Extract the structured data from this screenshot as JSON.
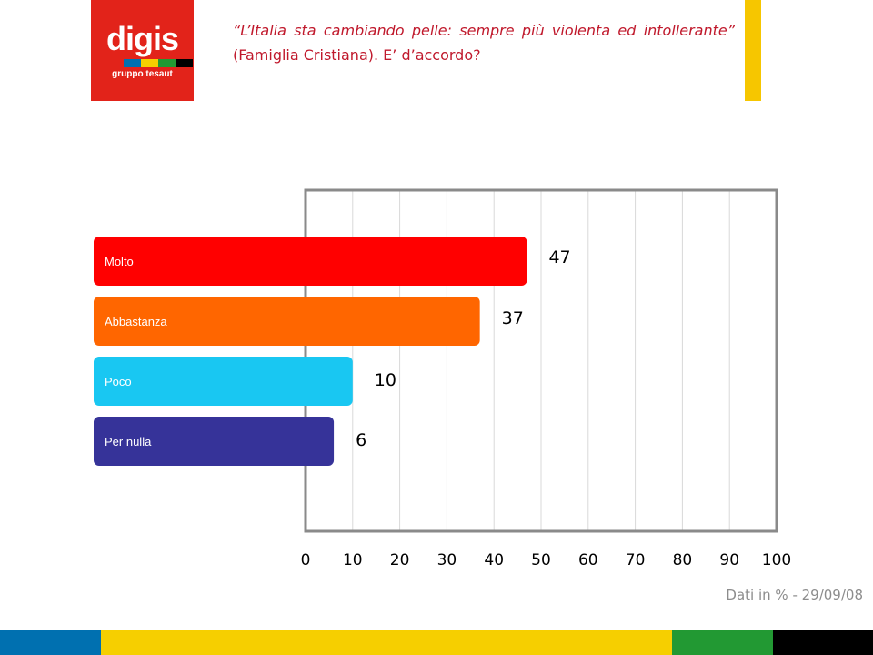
{
  "logo": {
    "word": "digis",
    "subtitle": "gruppo tesaut"
  },
  "question": {
    "quote": "“L’Italia sta cambiando pelle: sempre più violenta ed intollerante”",
    "rest": " (Famiglia Cristiana). E’ d’accordo?"
  },
  "footer": {
    "note": "Dati in % - 29/09/08"
  },
  "colors": {
    "brand_red": "#e2231a",
    "accent_yellow": "#f6c600",
    "text_red": "#c0192c",
    "grid": "#d9d9d9",
    "frame": "#8a8a8a"
  },
  "chart_data": {
    "type": "bar",
    "orientation": "horizontal",
    "categories": [
      "Molto",
      "Abbastanza",
      "Poco",
      "Per nulla"
    ],
    "values": [
      47,
      37,
      10,
      6
    ],
    "bar_colors": [
      "#ff0000",
      "#ff6600",
      "#19c7f2",
      "#363399"
    ],
    "x_ticks": [
      0,
      10,
      20,
      30,
      40,
      50,
      60,
      70,
      80,
      90,
      100
    ],
    "xlim": [
      0,
      100
    ],
    "grid": true,
    "title": "",
    "xlabel": "",
    "ylabel": ""
  },
  "bottom_stripes": [
    "#0070b0",
    "#f6cf00",
    "#229933",
    "#000000"
  ]
}
